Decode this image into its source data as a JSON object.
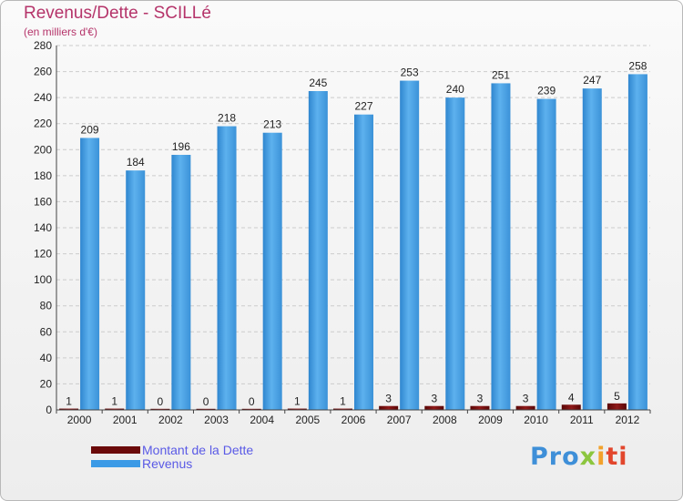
{
  "title": "Revenus/Dette - SCILLé",
  "subtitle": "(en milliers d'€)",
  "colors": {
    "debt": "#6b0a0a",
    "revenue": "#3b9ae6",
    "title": "#b5346a",
    "legend_text": "#5a5ae6"
  },
  "chart_data": {
    "type": "bar",
    "title": "Revenus/Dette - SCILLé",
    "ylabel": "(en milliers d'€)",
    "xlabel": "",
    "ylim": [
      0,
      280
    ],
    "yticks": [
      0,
      20,
      40,
      60,
      80,
      100,
      120,
      140,
      160,
      180,
      200,
      220,
      240,
      260,
      280
    ],
    "grid": true,
    "categories": [
      "2000",
      "2001",
      "2002",
      "2003",
      "2004",
      "2005",
      "2006",
      "2007",
      "2008",
      "2009",
      "2010",
      "2011",
      "2012"
    ],
    "series": [
      {
        "name": "Montant de la Dette",
        "values": [
          1,
          1,
          0,
          0,
          0,
          1,
          1,
          3,
          3,
          3,
          3,
          4,
          5
        ]
      },
      {
        "name": "Revenus",
        "values": [
          209,
          184,
          196,
          218,
          213,
          245,
          227,
          253,
          240,
          251,
          239,
          247,
          258
        ]
      }
    ],
    "legend_position": "bottom-left"
  },
  "legend": {
    "debt_label": "Montant de la Dette",
    "revenue_label": "Revenus"
  },
  "logo": {
    "text": "Proxiti",
    "parts": [
      "Pro",
      "x",
      "i",
      "ti"
    ]
  }
}
